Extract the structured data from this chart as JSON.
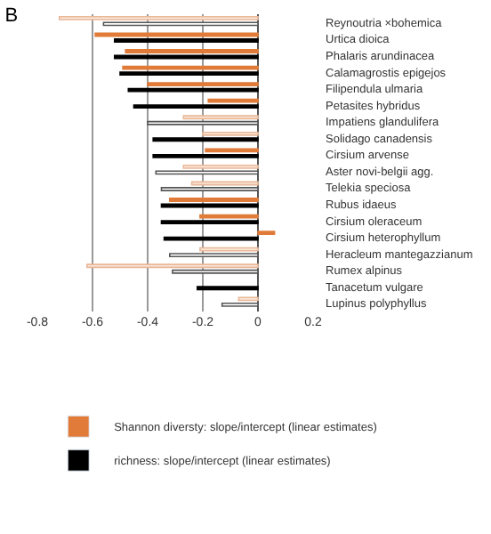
{
  "chart_data": {
    "type": "bar",
    "orientation": "horizontal",
    "title": "B",
    "categories": [
      "Reynoutria ×bohemica",
      "Urtica dioica",
      "Phalaris arundinacea",
      "Calamagrostis epigejos",
      "Filipendula ulmaria",
      "Petasites hybridus",
      "Impatiens glandulifera",
      "Solidago canadensis",
      "Cirsium arvense",
      "Aster novi-belgii agg.",
      "Telekia speciosa",
      "Rubus idaeus",
      "Cirsium oleraceum",
      "Cirsium heterophyllum",
      "Heracleum mantegazzianum",
      "Rumex alpinus",
      "Tanacetum vulgare",
      "Lupinus polyphyllus"
    ],
    "series": [
      {
        "name": "Shannon diversty: slope/intercept (linear estimates)",
        "color": "#e07b39",
        "values": [
          -0.72,
          -0.59,
          -0.48,
          -0.49,
          -0.4,
          -0.18,
          -0.27,
          -0.2,
          -0.19,
          -0.27,
          -0.24,
          -0.32,
          -0.21,
          0.06,
          -0.21,
          -0.62,
          null,
          -0.07
        ],
        "colors": [
          "#fde6d6",
          "#e07b39",
          "#e07b39",
          "#e07b39",
          "#e07b39",
          "#e07b39",
          "#fde6d6",
          "#fde6d6",
          "#e07b39",
          "#fde6d6",
          "#fde6d6",
          "#e07b39",
          "#e07b39",
          "#e07b39",
          "#fde6d6",
          "#fde6d6",
          "#fde6d6",
          "#fde6d6"
        ]
      },
      {
        "name": "richness: slope/intercept (linear estimates)",
        "color": "#000000",
        "values": [
          -0.56,
          -0.52,
          -0.52,
          -0.5,
          -0.47,
          -0.45,
          -0.4,
          -0.38,
          -0.38,
          -0.37,
          -0.35,
          -0.35,
          -0.35,
          -0.34,
          -0.32,
          -0.31,
          -0.22,
          -0.13
        ],
        "colors": [
          "#ffffff",
          "#000000",
          "#000000",
          "#000000",
          "#000000",
          "#000000",
          "#ffffff",
          "#000000",
          "#000000",
          "#ffffff",
          "#ffffff",
          "#000000",
          "#000000",
          "#000000",
          "#ffffff",
          "#ffffff",
          "#000000",
          "#ffffff"
        ]
      }
    ],
    "xlim": [
      -0.8,
      0.2
    ],
    "xticks": [
      -0.8,
      -0.6,
      -0.4,
      -0.2,
      0,
      0.2
    ],
    "grid": "x",
    "legend": "bottom"
  }
}
